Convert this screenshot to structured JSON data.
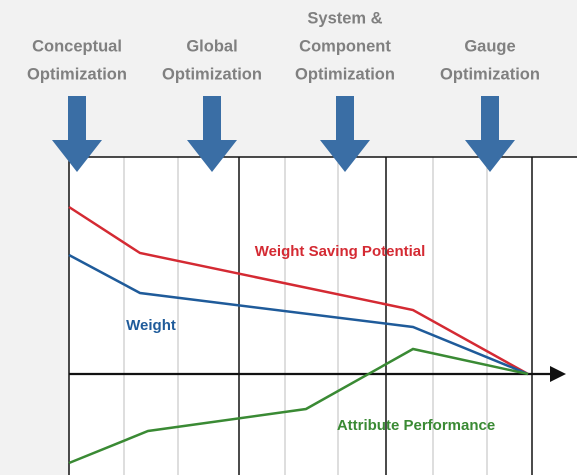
{
  "columns": [
    {
      "lines": [
        "Conceptual",
        "Optimization"
      ]
    },
    {
      "lines": [
        "Global",
        "Optimization"
      ]
    },
    {
      "lines": [
        "System &",
        "Component",
        "Optimization"
      ]
    },
    {
      "lines": [
        "Gauge",
        "Optimization"
      ]
    }
  ],
  "curves": [
    {
      "label": "Weight Saving Potential",
      "color": "#d42a33"
    },
    {
      "label": "Weight",
      "color": "#1f5b9a"
    },
    {
      "label": "Attribute Performance",
      "color": "#3a8a34"
    }
  ]
}
